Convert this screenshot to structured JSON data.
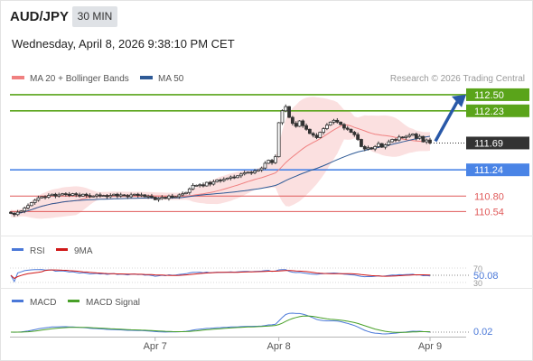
{
  "header": {
    "symbol": "AUD/JPY",
    "timeframe": "30 MIN",
    "datetime": "Wednesday, April 8, 2026 9:38:10 PM CET"
  },
  "legend": {
    "ma20_bb": "MA 20 + Bollinger Bands",
    "ma50": "MA 50",
    "credit": "Research © 2026 Trading Central"
  },
  "colors": {
    "green_level": "#5aa41a",
    "blue_level": "#4a84e6",
    "red_level": "#e05a5a",
    "bollinger_fill": "#fbe0e0",
    "ma20": "#f08080",
    "ma50": "#2e5a96",
    "candle": "#333333",
    "arrow": "#2858a8",
    "rsi": "#4a78d8",
    "rsi_ma": "#d01818",
    "macd": "#4a78d8",
    "macd_signal": "#48a028"
  },
  "chart_data": [
    {
      "type": "candlestick",
      "title": "AUD/JPY",
      "ylim": [
        110.38,
        112.62
      ],
      "x_ticks": [
        "Apr 7",
        "Apr 8",
        "Apr 9"
      ],
      "current_price": 111.69,
      "levels": [
        {
          "value": 112.5,
          "label": "112.50",
          "kind": "resistance"
        },
        {
          "value": 112.23,
          "label": "112.23",
          "kind": "resistance"
        },
        {
          "value": 111.24,
          "label": "111.24",
          "kind": "pivot"
        },
        {
          "value": 110.8,
          "label": "110.80",
          "kind": "support"
        },
        {
          "value": 110.54,
          "label": "110.54",
          "kind": "support"
        }
      ],
      "series": [
        {
          "name": "MA 20 + Bollinger Bands",
          "kind": "ma20_bb"
        },
        {
          "name": "MA 50",
          "kind": "ma50"
        }
      ],
      "closes": [
        110.51,
        110.49,
        110.53,
        110.55,
        110.6,
        110.64,
        110.69,
        110.73,
        110.77,
        110.79,
        110.78,
        110.81,
        110.83,
        110.8,
        110.82,
        110.84,
        110.83,
        110.81,
        110.84,
        110.82,
        110.8,
        110.83,
        110.81,
        110.79,
        110.8,
        110.82,
        110.8,
        110.81,
        110.79,
        110.81,
        110.83,
        110.8,
        110.82,
        110.81,
        110.79,
        110.82,
        110.83,
        110.81,
        110.82,
        110.79,
        110.8,
        110.78,
        110.74,
        110.76,
        110.78,
        110.76,
        110.8,
        110.78,
        110.79,
        110.82,
        110.84,
        110.86,
        110.92,
        110.98,
        110.98,
        110.99,
        110.97,
        111.03,
        111.0,
        111.04,
        111.07,
        111.06,
        111.08,
        111.1,
        111.12,
        111.11,
        111.14,
        111.17,
        111.19,
        111.2,
        111.19,
        111.22,
        111.24,
        111.27,
        111.35,
        111.4,
        111.36,
        111.46,
        112.03,
        112.23,
        112.3,
        112.12,
        112.02,
        111.97,
        112.06,
        111.98,
        111.92,
        111.85,
        111.82,
        111.78,
        111.87,
        111.93,
        111.99,
        112.04,
        112.07,
        112.04,
        112.0,
        111.94,
        111.92,
        111.87,
        111.83,
        111.75,
        111.63,
        111.59,
        111.61,
        111.59,
        111.63,
        111.68,
        111.62,
        111.66,
        111.71,
        111.75,
        111.74,
        111.79,
        111.78,
        111.8,
        111.82,
        111.84,
        111.77,
        111.8,
        111.71,
        111.74,
        111.69
      ]
    },
    {
      "type": "line",
      "title": "RSI",
      "series": [
        {
          "name": "RSI"
        },
        {
          "name": "9MA"
        }
      ],
      "ylim": [
        30,
        70
      ],
      "y_ticks": [
        70,
        30
      ],
      "current_value": 50.08,
      "current_label": "50.08"
    },
    {
      "type": "line",
      "title": "MACD",
      "series": [
        {
          "name": "MACD"
        },
        {
          "name": "MACD Signal"
        }
      ],
      "current_value": 0.02,
      "current_label": "0.02"
    }
  ]
}
